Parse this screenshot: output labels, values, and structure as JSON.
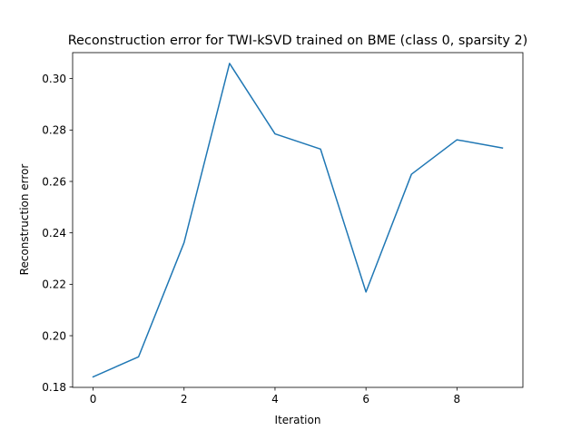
{
  "chart_data": {
    "type": "line",
    "title": "Reconstruction error for TWI-kSVD trained on BME (class 0, sparsity 2)",
    "xlabel": "Iteration",
    "ylabel": "Reconstruction error",
    "xlim": [
      -0.45,
      9.45
    ],
    "ylim": [
      0.1799,
      0.3101
    ],
    "xticks": [
      0,
      2,
      4,
      6,
      8
    ],
    "xtick_labels": [
      "0",
      "2",
      "4",
      "6",
      "8"
    ],
    "yticks": [
      0.18,
      0.2,
      0.22,
      0.24,
      0.26,
      0.28,
      0.3
    ],
    "ytick_labels": [
      "0.18",
      "0.20",
      "0.22",
      "0.24",
      "0.26",
      "0.28",
      "0.30"
    ],
    "grid": false,
    "series": [
      {
        "color": "#1f77b4",
        "x": [
          0,
          1,
          2,
          3,
          4,
          5,
          6,
          7,
          8,
          9
        ],
        "y": [
          0.184,
          0.1918,
          0.2362,
          0.3059,
          0.2785,
          0.2726,
          0.217,
          0.2628,
          0.2762,
          0.273
        ]
      }
    ]
  }
}
